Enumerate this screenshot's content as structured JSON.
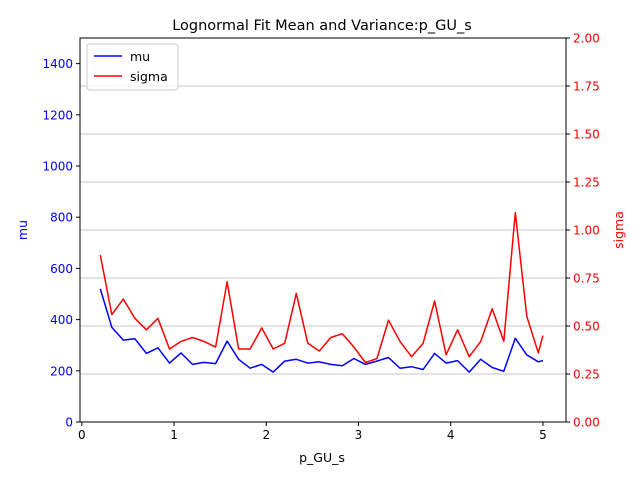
{
  "chart_data": {
    "type": "line",
    "title": "Lognormal Fit Mean and Variance:p_GU_s",
    "xlabel": "p_GU_s",
    "ylabel_left": "mu",
    "ylabel_right": "sigma",
    "xlim": [
      -0.02,
      5.25
    ],
    "ylim_left": [
      0,
      1500
    ],
    "ylim_right": [
      0,
      2.0
    ],
    "x_ticks": [
      0,
      1,
      2,
      3,
      4,
      5
    ],
    "y_left_ticks": [
      0,
      200,
      400,
      600,
      800,
      1000,
      1200,
      1400
    ],
    "y_right_ticks": [
      "0.00",
      "0.25",
      "0.50",
      "0.75",
      "1.00",
      "1.25",
      "1.50",
      "1.75",
      "2.00"
    ],
    "grid": "horizontal lines at right-axis ticks",
    "legend_position": "upper-left",
    "colors": {
      "mu": "#0000ff",
      "sigma": "#ff0000",
      "grid": "#b0b0b0"
    },
    "x": [
      0.2,
      0.325,
      0.45,
      0.575,
      0.7,
      0.825,
      0.95,
      1.075,
      1.2,
      1.325,
      1.45,
      1.575,
      1.7,
      1.825,
      1.95,
      2.075,
      2.2,
      2.325,
      2.45,
      2.575,
      2.7,
      2.825,
      2.95,
      3.075,
      3.2,
      3.325,
      3.45,
      3.575,
      3.7,
      3.825,
      3.95,
      4.075,
      4.2,
      4.325,
      4.45,
      4.575,
      4.7,
      4.825,
      4.95,
      5.0
    ],
    "series": [
      {
        "name": "mu",
        "axis": "left",
        "values": [
          520,
          370,
          320,
          325,
          268,
          290,
          230,
          270,
          225,
          233,
          228,
          316,
          245,
          210,
          225,
          195,
          238,
          245,
          230,
          235,
          225,
          220,
          248,
          225,
          238,
          252,
          210,
          216,
          205,
          268,
          230,
          240,
          195,
          245,
          213,
          198,
          327,
          262,
          235,
          240
        ]
      },
      {
        "name": "sigma",
        "axis": "right",
        "values": [
          0.87,
          0.56,
          0.64,
          0.54,
          0.48,
          0.54,
          0.38,
          0.42,
          0.44,
          0.42,
          0.39,
          0.73,
          0.38,
          0.38,
          0.49,
          0.38,
          0.41,
          0.67,
          0.41,
          0.37,
          0.44,
          0.46,
          0.39,
          0.31,
          0.33,
          0.53,
          0.42,
          0.34,
          0.41,
          0.63,
          0.35,
          0.48,
          0.34,
          0.42,
          0.59,
          0.42,
          1.09,
          0.55,
          0.36,
          0.45
        ]
      }
    ]
  }
}
